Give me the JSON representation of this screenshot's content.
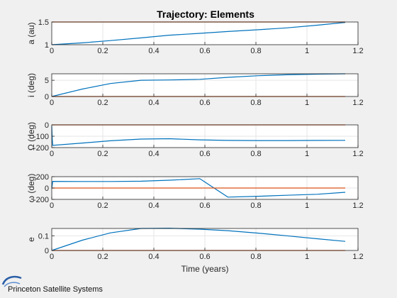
{
  "window": {
    "title": "Trajectory: Elements",
    "branding": "Princeton Satellite Systems"
  },
  "colors": {
    "background": "#f0f0f0",
    "axes_bg": "#ffffff",
    "series_blue": "#0072bd",
    "series_orange": "#d95319",
    "grid": "#e6e6e6"
  },
  "chart_data": [
    {
      "type": "line",
      "title": "Trajectory: Elements",
      "ylabel": "a (au)",
      "xlabel": "",
      "xlim": [
        0,
        1.2
      ],
      "ylim": [
        1,
        1.5
      ],
      "xticks": [
        "0",
        "0.2",
        "0.4",
        "0.6",
        "0.8",
        "1",
        "1.2"
      ],
      "yticks": [
        {
          "v": 1,
          "label": "1"
        },
        {
          "v": 1.5,
          "label": "1.5"
        }
      ],
      "grid": true,
      "series": [
        {
          "color": "blue",
          "x": [
            0,
            0.12,
            0.23,
            0.35,
            0.46,
            0.58,
            0.69,
            0.81,
            0.92,
            1.04,
            1.15
          ],
          "y": [
            1.0,
            1.04,
            1.09,
            1.15,
            1.21,
            1.25,
            1.29,
            1.33,
            1.37,
            1.43,
            1.49
          ]
        },
        {
          "color": "orange",
          "x": [
            0,
            1.15
          ],
          "y": [
            1.5,
            1.5
          ]
        }
      ]
    },
    {
      "type": "line",
      "ylabel": "i (deg)",
      "xlabel": "",
      "xlim": [
        0,
        1.2
      ],
      "ylim": [
        0,
        7
      ],
      "xticks": [
        "0",
        "0.2",
        "0.4",
        "0.6",
        "0.8",
        "1",
        "1.2"
      ],
      "yticks": [
        {
          "v": 0,
          "label": "0"
        },
        {
          "v": 5,
          "label": "5"
        }
      ],
      "grid": true,
      "series": [
        {
          "color": "blue",
          "x": [
            0,
            0.12,
            0.23,
            0.35,
            0.46,
            0.58,
            0.69,
            0.81,
            0.92,
            1.04,
            1.15
          ],
          "y": [
            0,
            2.3,
            4.0,
            5.0,
            5.1,
            5.3,
            5.9,
            6.4,
            6.7,
            6.9,
            7.0
          ]
        },
        {
          "color": "orange",
          "x": [
            0,
            1.15
          ],
          "y": [
            0,
            0
          ]
        }
      ]
    },
    {
      "type": "line",
      "ylabel": "Ω (deg)",
      "xlabel": "",
      "xlim": [
        0,
        1.2
      ],
      "ylim": [
        -200,
        0
      ],
      "xticks": [
        "0",
        "0.2",
        "0.4",
        "0.6",
        "0.8",
        "1",
        "1.2"
      ],
      "yticks": [
        {
          "v": -200,
          "label": "-200"
        },
        {
          "v": -100,
          "label": "-100"
        },
        {
          "v": 0,
          "label": "0"
        }
      ],
      "grid": true,
      "series": [
        {
          "color": "blue",
          "x": [
            0,
            0.002,
            0.004,
            0.12,
            0.23,
            0.35,
            0.46,
            0.58,
            0.69,
            0.81,
            0.92,
            1.04,
            1.15
          ],
          "y": [
            -10,
            -120,
            -180,
            -160,
            -140,
            -125,
            -122,
            -132,
            -137,
            -138,
            -138,
            -137,
            -136
          ]
        },
        {
          "color": "orange",
          "x": [
            0,
            1.15
          ],
          "y": [
            0,
            0
          ]
        }
      ]
    },
    {
      "type": "line",
      "ylabel": "ω (deg)",
      "xlabel": "",
      "xlim": [
        0,
        1.2
      ],
      "ylim": [
        -200,
        200
      ],
      "xticks": [
        "0",
        "0.2",
        "0.4",
        "0.6",
        "0.8",
        "1",
        "1.2"
      ],
      "yticks": [
        {
          "v": -200,
          "label": "-200"
        },
        {
          "v": 0,
          "label": "0"
        },
        {
          "v": 200,
          "label": "200"
        }
      ],
      "grid": true,
      "series": [
        {
          "color": "blue",
          "x": [
            0,
            0.004,
            0.12,
            0.23,
            0.35,
            0.46,
            0.58,
            0.69,
            0.81,
            0.92,
            1.04,
            1.15
          ],
          "y": [
            -10,
            118,
            115,
            115,
            120,
            137,
            165,
            -160,
            -145,
            -128,
            -110,
            -75
          ]
        },
        {
          "color": "orange",
          "x": [
            0,
            1.15
          ],
          "y": [
            0,
            0
          ]
        }
      ]
    },
    {
      "type": "line",
      "ylabel": "e",
      "xlabel": "Time (years)",
      "xlim": [
        0,
        1.2
      ],
      "ylim": [
        0,
        0.15
      ],
      "xticks": [
        "0",
        "0.2",
        "0.4",
        "0.6",
        "0.8",
        "1",
        "1.2"
      ],
      "yticks": [
        {
          "v": 0,
          "label": "0"
        },
        {
          "v": 0.1,
          "label": "0.1"
        }
      ],
      "grid": true,
      "series": [
        {
          "color": "blue",
          "x": [
            0,
            0.12,
            0.23,
            0.35,
            0.46,
            0.58,
            0.69,
            0.81,
            0.92,
            1.04,
            1.15
          ],
          "y": [
            0,
            0.07,
            0.12,
            0.15,
            0.152,
            0.145,
            0.135,
            0.118,
            0.1,
            0.08,
            0.062
          ]
        },
        {
          "color": "orange",
          "x": [
            0,
            1.15
          ],
          "y": [
            0,
            0
          ]
        }
      ]
    }
  ]
}
